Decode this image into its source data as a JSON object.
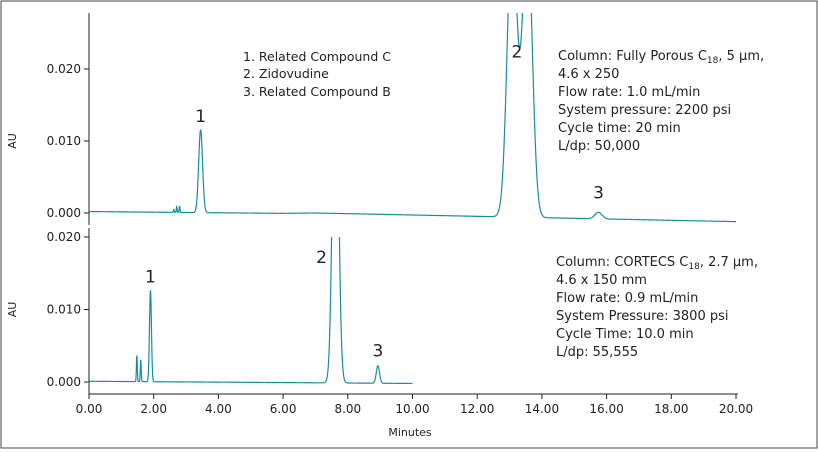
{
  "colors": {
    "trace": "#1a8ba0",
    "axis": "#222222",
    "frame": "#444444"
  },
  "x_axis": {
    "label": "Minutes",
    "ticks": [
      "0.00",
      "2.00",
      "4.00",
      "6.00",
      "8.00",
      "10.00",
      "12.00",
      "14.00",
      "16.00",
      "18.00",
      "20.00"
    ]
  },
  "legend": [
    "1. Related Compound C",
    "2. Zidovudine",
    "3. Related Compound B"
  ],
  "top_info": {
    "line1_pre": "Column: Fully Porous C",
    "line1_sub": "18",
    "line1_post": ", 5 μm,",
    "line2": "4.6 x 250",
    "line3": "Flow rate: 1.0 mL/min",
    "line4": "System pressure: 2200 psi",
    "line5": "Cycle time: 20 min",
    "line6": "L/dp: 50,000"
  },
  "bottom_info": {
    "line1_pre": "Column: CORTECS C",
    "line1_sub": "18",
    "line1_post": ", 2.7 μm,",
    "line2": "4.6 x 150 mm",
    "line3": "Flow rate: 0.9 mL/min",
    "line4": "System Pressure: 3800 psi",
    "line5": "Cycle Time: 10.0 min",
    "line6": "L/dp: 55,555"
  },
  "chart_data": [
    {
      "type": "line",
      "name": "Fully Porous C18, 250 mm",
      "xlabel": "Minutes",
      "ylabel": "AU",
      "xlim": [
        0,
        20
      ],
      "ylim": [
        0,
        0.02
      ],
      "yticks": [
        "0.000",
        "0.010",
        "0.020"
      ],
      "peaks": [
        {
          "label": "1",
          "x": 3.45,
          "y": 0.0115
        },
        {
          "label": "2",
          "x": 13.35,
          "y": 0.0205
        },
        {
          "label": "3",
          "x": 15.75,
          "y": 0.0009
        }
      ],
      "trace": {
        "range": [
          0,
          20
        ],
        "baseline": [
          [
            0,
            0.0002
          ],
          [
            6,
            -5e-05
          ],
          [
            7,
            0.0
          ],
          [
            20,
            -0.0012
          ]
        ],
        "gaussians": [
          {
            "mu": 2.62,
            "sigma": 0.012,
            "h": 0.0004
          },
          {
            "mu": 2.71,
            "sigma": 0.012,
            "h": 0.0008
          },
          {
            "mu": 2.8,
            "sigma": 0.012,
            "h": 0.0009
          },
          {
            "mu": 3.45,
            "sigma": 0.06,
            "h": 0.0115
          },
          {
            "mu": 13.08,
            "sigma": 0.15,
            "h": 0.04
          },
          {
            "mu": 13.55,
            "sigma": 0.15,
            "h": 0.04
          },
          {
            "mu": 15.75,
            "sigma": 0.11,
            "h": 0.0009
          }
        ]
      }
    },
    {
      "type": "line",
      "name": "CORTECS C18, 150 mm",
      "xlabel": "Minutes",
      "ylabel": "AU",
      "xlim": [
        0,
        20
      ],
      "ylim": [
        0,
        0.02
      ],
      "yticks": [
        "0.000",
        "0.010",
        "0.020"
      ],
      "peaks": [
        {
          "label": "1",
          "x": 1.9,
          "y": 0.0126
        },
        {
          "label": "2",
          "x": 7.62,
          "y": 0.0205
        },
        {
          "label": "3",
          "x": 8.93,
          "y": 0.0024
        }
      ],
      "trace": {
        "range": [
          0,
          10
        ],
        "baseline": [
          [
            0,
            0.0001
          ],
          [
            10,
            -0.0002
          ]
        ],
        "gaussians": [
          {
            "mu": 1.48,
            "sigma": 0.014,
            "h": 0.0036
          },
          {
            "mu": 1.6,
            "sigma": 0.014,
            "h": 0.003
          },
          {
            "mu": 1.9,
            "sigma": 0.03,
            "h": 0.0126
          },
          {
            "mu": 7.62,
            "sigma": 0.09,
            "h": 0.05
          },
          {
            "mu": 8.93,
            "sigma": 0.05,
            "h": 0.0024
          }
        ]
      }
    }
  ]
}
